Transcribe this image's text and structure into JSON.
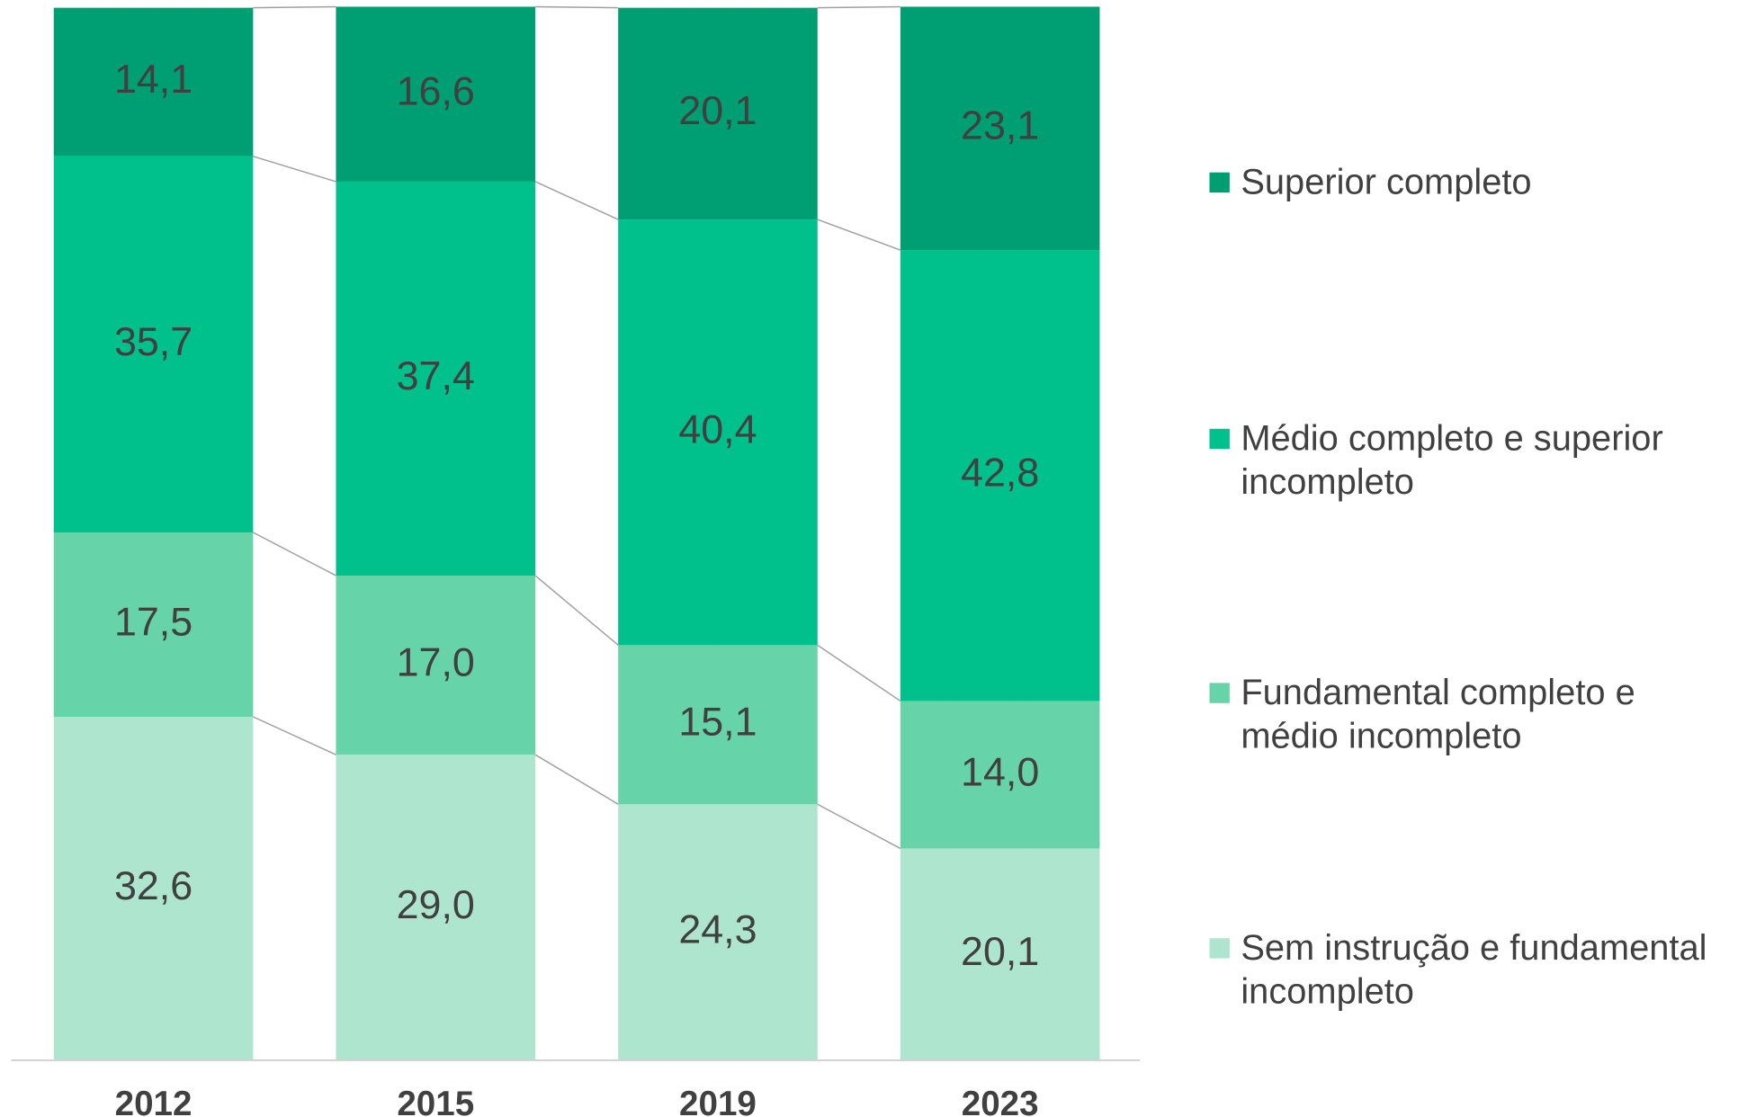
{
  "chart_data": {
    "type": "stacked_bar",
    "categories": [
      "2012",
      "2015",
      "2019",
      "2023"
    ],
    "ylim": [
      0,
      100
    ],
    "series": [
      {
        "name": "Sem instrução e fundamental incompleto",
        "color": "#aee5cf",
        "values": [
          32.6,
          29.0,
          24.3,
          20.1
        ],
        "value_labels": [
          "32,6",
          "29,0",
          "24,3",
          "20,1"
        ]
      },
      {
        "name": "Fundamental completo e médio incompleto",
        "color": "#66d4a8",
        "values": [
          17.5,
          17.0,
          15.1,
          14.0
        ],
        "value_labels": [
          "17,5",
          "17,0",
          "15,1",
          "14,0"
        ]
      },
      {
        "name": "Médio completo e superior incompleto",
        "color": "#00c08b",
        "values": [
          35.7,
          37.4,
          40.4,
          42.8
        ],
        "value_labels": [
          "35,7",
          "37,4",
          "40,4",
          "42,8"
        ]
      },
      {
        "name": "Superior completo",
        "color": "#009e73",
        "values": [
          14.1,
          16.6,
          20.1,
          23.1
        ],
        "value_labels": [
          "14,1",
          "16,6",
          "20,1",
          "23,1"
        ]
      }
    ]
  }
}
